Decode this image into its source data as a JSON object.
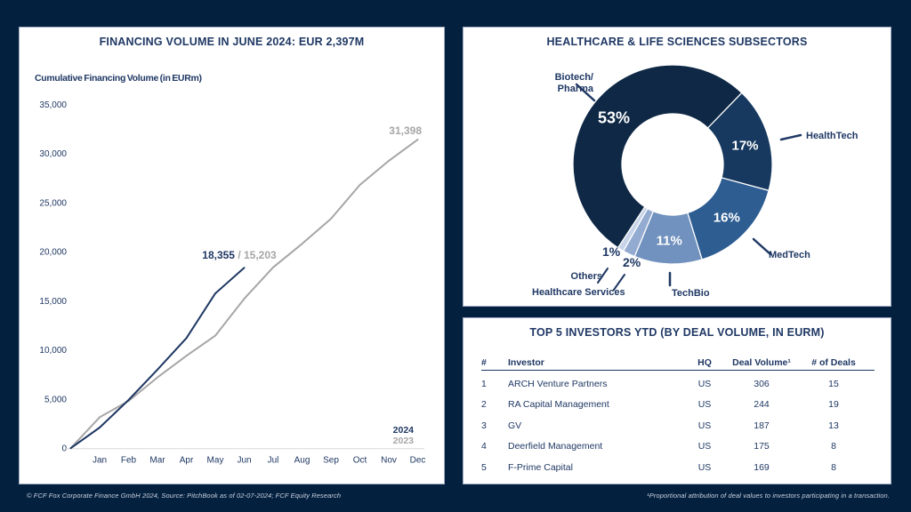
{
  "footer": {
    "left": "© FCF Fox Corporate Finance GmbH 2024, Source: PitchBook as of 02-07-2024;  FCF Equity Research",
    "right": "¹Proportional attribution of deal values to investors participating in a transaction."
  },
  "colors": {
    "background": "#04203f",
    "title_navy": "#1f3864",
    "series_2024": "#1f3864",
    "series_2023": "#a6a6a6",
    "axis_line": "#d9d9d9"
  },
  "chart_data": [
    {
      "type": "line",
      "title": "FINANCING VOLUME IN JUNE 2024: EUR 2,397M",
      "subtitle": "Cumulative Financing Volume (in EURm)",
      "months": [
        "Jan",
        "Feb",
        "Mar",
        "Apr",
        "May",
        "Jun",
        "Jul",
        "Aug",
        "Sep",
        "Oct",
        "Nov",
        "Dec"
      ],
      "y_ticks": [
        {
          "v": 35000,
          "label": "35,000"
        },
        {
          "v": 30000,
          "label": "30,000"
        },
        {
          "v": 25000,
          "label": "25,000"
        },
        {
          "v": 20000,
          "label": "20,000"
        },
        {
          "v": 15000,
          "label": "15,000"
        },
        {
          "v": 10000,
          "label": "10,000"
        },
        {
          "v": 5000,
          "label": "5,000"
        },
        {
          "v": 0,
          "label": "0"
        }
      ],
      "ylim": [
        0,
        35000
      ],
      "grid": false,
      "legend_position": "bottom-right",
      "series": [
        {
          "name": "2023",
          "color": "#a6a6a6",
          "values": [
            0,
            3150,
            4800,
            7200,
            9400,
            11450,
            15203,
            18400,
            20800,
            23350,
            26800,
            29250,
            31398
          ]
        },
        {
          "name": "2024",
          "color": "#1f3864",
          "values": [
            0,
            2100,
            4900,
            8000,
            11200,
            15750,
            18355
          ]
        }
      ],
      "annotations": {
        "jun_2024_label": "18,355",
        "jun_separator": " / ",
        "jun_2023_label": "15,203",
        "dec_2023_label": "31,398"
      },
      "legend": [
        "2024",
        "2023"
      ]
    },
    {
      "type": "pie",
      "subtype": "donut",
      "title": "HEALTHCARE & LIFE SCIENCES SUBSECTORS",
      "start_angle_deg": 213.2,
      "slices": [
        {
          "label": "Biotech/Pharma",
          "pct": 53,
          "color": "#0e2846",
          "pct_label": "53%"
        },
        {
          "label": "HealthTech",
          "pct": 17,
          "color": "#17395f",
          "pct_label": "17%"
        },
        {
          "label": "MedTech",
          "pct": 16,
          "color": "#2e5d92",
          "pct_label": "16%"
        },
        {
          "label": "TechBio",
          "pct": 11,
          "color": "#7191bf",
          "pct_label": "11%"
        },
        {
          "label": "Healthcare Services",
          "pct": 2,
          "color": "#93abd1",
          "pct_label": "2%"
        },
        {
          "label": "Others",
          "pct": 1,
          "color": "#c6d3e8",
          "pct_label": "1%"
        }
      ],
      "callouts": {
        "biotech_line1": "Biotech/",
        "biotech_line2": "Pharma",
        "healthtech": "HealthTech",
        "medtech": "MedTech",
        "techbio": "TechBio",
        "healthcare_services": "Healthcare Services",
        "others": "Others",
        "pct_2": "2%",
        "pct_1": "1%"
      }
    }
  ],
  "table": {
    "title": "TOP 5 INVESTORS YTD (BY DEAL VOLUME, IN EURM)",
    "columns": [
      "#",
      "Investor",
      "HQ",
      "Deal Volume¹",
      "# of Deals"
    ],
    "rows": [
      [
        "1",
        "ARCH Venture Partners",
        "US",
        "306",
        "15"
      ],
      [
        "2",
        "RA Capital Management",
        "US",
        "244",
        "19"
      ],
      [
        "3",
        "GV",
        "US",
        "187",
        "13"
      ],
      [
        "4",
        "Deerfield Management",
        "US",
        "175",
        "8"
      ],
      [
        "5",
        "F-Prime Capital",
        "US",
        "169",
        "8"
      ]
    ]
  }
}
